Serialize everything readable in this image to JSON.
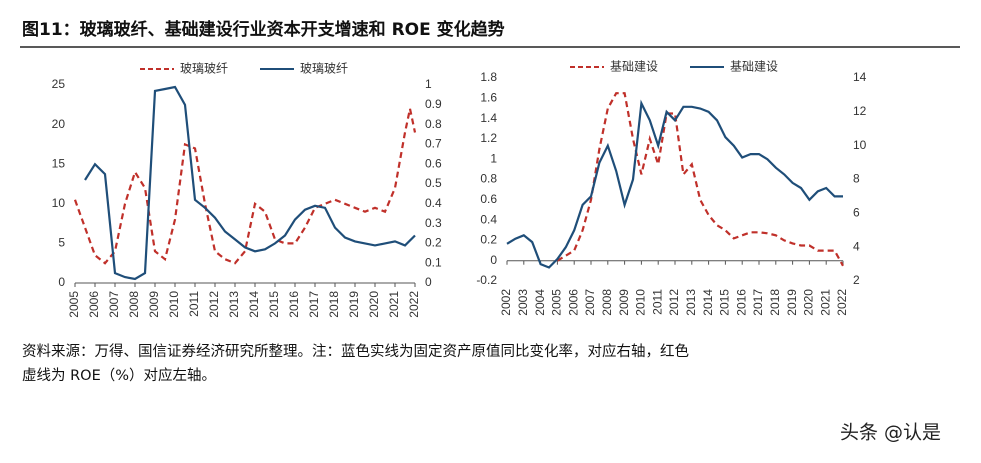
{
  "title": "图11：玻璃玻纤、基础建设行业资本开支增速和 ROE 变化趋势",
  "note": [
    "资料来源：万得、国信证券经济研究所整理。注：蓝色实线为固定资产原值同比变化率，对应右轴，红色",
    "虚线为 ROE（%）对应左轴。"
  ],
  "watermark": "头条 @认是",
  "chart_data": [
    {
      "type": "line",
      "xlim": [
        2005,
        2022
      ],
      "xticks": [
        2005,
        2006,
        2007,
        2008,
        2009,
        2010,
        2011,
        2012,
        2013,
        2014,
        2015,
        2016,
        2017,
        2018,
        2019,
        2020,
        2021,
        2022
      ],
      "ylim": [
        0,
        25
      ],
      "yticks": [
        0,
        5,
        10,
        15,
        20,
        25
      ],
      "y2lim": [
        0,
        1
      ],
      "y2ticks": [
        0,
        0.1,
        0.2,
        0.3,
        0.4,
        0.5,
        0.6,
        0.7,
        0.8,
        0.9,
        1
      ],
      "series": [
        {
          "name": "玻璃玻纤",
          "color": "#c0302a",
          "dashed": true,
          "x": [
            2005,
            2005.5,
            2006,
            2006.5,
            2007,
            2007.5,
            2008,
            2008.5,
            2009,
            2009.5,
            2010,
            2010.5,
            2011,
            2011.5,
            2012,
            2012.5,
            2013,
            2013.5,
            2014,
            2014.5,
            2015,
            2015.5,
            2016,
            2016.5,
            2017,
            2017.5,
            2018,
            2018.5,
            2019,
            2019.5,
            2020,
            2020.5,
            2021,
            2021.5,
            2021.75,
            2022
          ],
          "values": [
            10.5,
            7,
            3.5,
            2.5,
            4,
            10,
            14,
            12,
            4,
            3,
            8,
            17.5,
            17,
            10,
            4,
            3,
            2.5,
            4,
            10,
            9,
            5.5,
            5,
            5,
            7,
            9.5,
            10,
            10.5,
            10,
            9.5,
            9,
            9.5,
            9,
            12,
            19,
            22,
            19
          ]
        },
        {
          "name": "玻璃玻纤",
          "color": "#1f4e79",
          "axis": "y2",
          "x": [
            2005.5,
            2006,
            2006.5,
            2007,
            2007.5,
            2008,
            2008.5,
            2009,
            2009.5,
            2010,
            2010.5,
            2011,
            2011.5,
            2012,
            2012.5,
            2013,
            2013.5,
            2014,
            2014.5,
            2015,
            2015.5,
            2016,
            2016.5,
            2017,
            2017.5,
            2018,
            2018.5,
            2019,
            2019.5,
            2020,
            2020.5,
            2021,
            2021.5,
            2022
          ],
          "values": [
            0.52,
            0.6,
            0.55,
            0.05,
            0.03,
            0.02,
            0.05,
            0.97,
            0.98,
            0.99,
            0.9,
            0.42,
            0.38,
            0.33,
            0.26,
            0.22,
            0.18,
            0.16,
            0.17,
            0.2,
            0.24,
            0.32,
            0.37,
            0.39,
            0.38,
            0.28,
            0.23,
            0.21,
            0.2,
            0.19,
            0.2,
            0.21,
            0.19,
            0.24
          ]
        }
      ]
    },
    {
      "type": "line",
      "xlim": [
        2002,
        2022
      ],
      "xticks": [
        2002,
        2003,
        2004,
        2005,
        2006,
        2007,
        2008,
        2009,
        2010,
        2011,
        2012,
        2013,
        2014,
        2015,
        2016,
        2017,
        2018,
        2019,
        2020,
        2021,
        2022
      ],
      "ylim": [
        -0.2,
        1.8
      ],
      "yticks": [
        -0.2,
        0,
        0.2,
        0.4,
        0.6,
        0.8,
        1,
        1.2,
        1.4,
        1.6,
        1.8
      ],
      "y2lim": [
        2,
        14
      ],
      "y2ticks": [
        2,
        4,
        6,
        8,
        10,
        12,
        14
      ],
      "series": [
        {
          "name": "基础建设",
          "color": "#c0302a",
          "dashed": true,
          "x": [
            2005,
            2005.5,
            2006,
            2006.5,
            2007,
            2007.5,
            2008,
            2008.5,
            2009,
            2009.5,
            2010,
            2010.5,
            2011,
            2011.5,
            2012,
            2012.5,
            2013,
            2013.5,
            2014,
            2014.5,
            2015,
            2015.5,
            2016,
            2016.5,
            2017,
            2017.5,
            2018,
            2018.5,
            2019,
            2019.5,
            2020,
            2020.5,
            2021,
            2021.5,
            2022
          ],
          "values": [
            0,
            0.05,
            0.1,
            0.3,
            0.6,
            1.1,
            1.5,
            1.65,
            1.65,
            1.2,
            0.85,
            1.2,
            0.95,
            1.45,
            1.45,
            0.85,
            0.95,
            0.6,
            0.45,
            0.35,
            0.3,
            0.22,
            0.25,
            0.28,
            0.28,
            0.27,
            0.25,
            0.2,
            0.17,
            0.15,
            0.15,
            0.1,
            0.1,
            0.1,
            -0.05
          ]
        },
        {
          "name": "基础建设",
          "color": "#1f4e79",
          "axis": "y2",
          "x": [
            2002,
            2002.5,
            2003,
            2003.5,
            2004,
            2004.5,
            2005,
            2005.5,
            2006,
            2006.5,
            2007,
            2007.5,
            2008,
            2008.5,
            2009,
            2009.5,
            2010,
            2010.5,
            2011,
            2011.5,
            2012,
            2012.5,
            2013,
            2013.5,
            2014,
            2014.5,
            2015,
            2015.5,
            2016,
            2016.5,
            2017,
            2017.5,
            2018,
            2018.5,
            2019,
            2019.5,
            2020,
            2020.5,
            2021,
            2021.5,
            2022
          ],
          "values": [
            4.2,
            4.5,
            4.7,
            4.3,
            3,
            2.8,
            3.3,
            4,
            5,
            6.5,
            7,
            9,
            10,
            8.5,
            6.5,
            8,
            12.5,
            11.5,
            10,
            12,
            11.5,
            12.3,
            12.3,
            12.2,
            12,
            11.5,
            10.5,
            10,
            9.3,
            9.5,
            9.5,
            9.2,
            8.7,
            8.3,
            7.8,
            7.5,
            6.8,
            7.3,
            7.5,
            7,
            7
          ]
        }
      ]
    }
  ]
}
